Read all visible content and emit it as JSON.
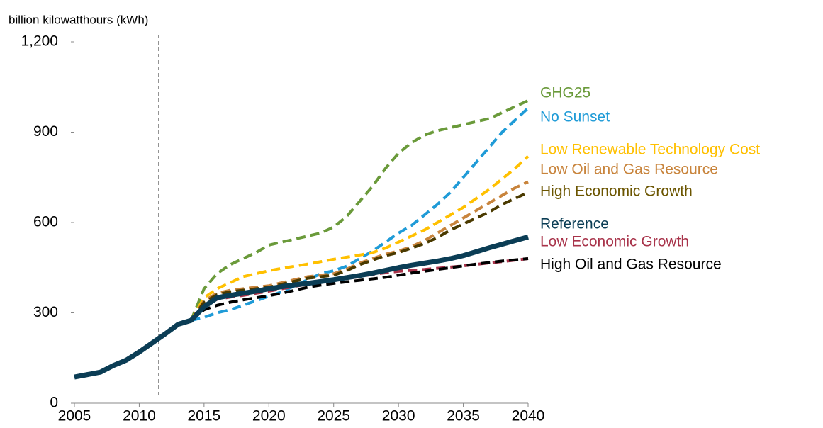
{
  "chart_data": {
    "type": "line",
    "y_label": "billion kilowatthours (kWh)",
    "x": [
      2005,
      2006,
      2007,
      2008,
      2009,
      2010,
      2011,
      2012,
      2013,
      2014,
      2015,
      2016,
      2017,
      2018,
      2019,
      2020,
      2021,
      2022,
      2023,
      2024,
      2025,
      2026,
      2027,
      2028,
      2029,
      2030,
      2031,
      2032,
      2033,
      2034,
      2035,
      2036,
      2037,
      2038,
      2039,
      2040
    ],
    "xlim": [
      2005,
      2040
    ],
    "xticks": [
      2005,
      2010,
      2015,
      2020,
      2025,
      2030,
      2035,
      2040
    ],
    "ylim": [
      0,
      1200
    ],
    "yticks": [
      0,
      300,
      600,
      900,
      {
        "value": 1200,
        "label": "1,200"
      }
    ],
    "divider_x": 2011.5,
    "series": [
      {
        "name": "GHG25",
        "color": "#6a9a3a",
        "dashed": true,
        "values": [
          null,
          null,
          null,
          null,
          null,
          null,
          null,
          null,
          null,
          275,
          380,
          430,
          460,
          480,
          500,
          525,
          535,
          545,
          555,
          565,
          585,
          620,
          670,
          720,
          780,
          830,
          865,
          890,
          905,
          915,
          925,
          935,
          945,
          965,
          985,
          1005
        ]
      },
      {
        "name": "No Sunset",
        "color": "#1f9bd7",
        "dashed": true,
        "values": [
          null,
          null,
          null,
          null,
          null,
          null,
          null,
          null,
          null,
          275,
          285,
          300,
          310,
          325,
          340,
          355,
          370,
          390,
          410,
          430,
          440,
          455,
          480,
          505,
          535,
          565,
          590,
          625,
          660,
          700,
          750,
          800,
          850,
          900,
          940,
          980
        ]
      },
      {
        "name": "Low Renewable Technology Cost",
        "color": "#ffc000",
        "dashed": true,
        "values": [
          null,
          null,
          null,
          null,
          null,
          null,
          null,
          null,
          null,
          275,
          350,
          380,
          400,
          420,
          430,
          440,
          448,
          455,
          462,
          470,
          478,
          485,
          492,
          500,
          515,
          535,
          555,
          575,
          600,
          625,
          650,
          680,
          710,
          745,
          780,
          820
        ]
      },
      {
        "name": "Low Oil and Gas Resource",
        "color": "#c8843c",
        "dashed": true,
        "values": [
          null,
          null,
          null,
          null,
          null,
          null,
          null,
          null,
          null,
          275,
          340,
          365,
          375,
          380,
          385,
          390,
          400,
          410,
          420,
          425,
          430,
          445,
          465,
          480,
          495,
          505,
          520,
          540,
          565,
          590,
          615,
          640,
          665,
          690,
          715,
          735
        ]
      },
      {
        "name": "High Economic Growth",
        "color": "#4a3a00",
        "dashed": true,
        "values": [
          null,
          null,
          null,
          null,
          null,
          null,
          null,
          null,
          null,
          275,
          335,
          360,
          370,
          375,
          380,
          385,
          395,
          405,
          415,
          420,
          425,
          440,
          460,
          475,
          490,
          500,
          515,
          530,
          550,
          575,
          595,
          615,
          635,
          660,
          680,
          700
        ]
      },
      {
        "name": "Low Economic Growth",
        "color": "#a8334a",
        "dashed": true,
        "values": [
          null,
          null,
          null,
          null,
          null,
          null,
          null,
          null,
          null,
          275,
          320,
          345,
          352,
          358,
          365,
          372,
          380,
          388,
          395,
          402,
          408,
          414,
          420,
          428,
          433,
          438,
          441,
          444,
          448,
          452,
          456,
          461,
          466,
          470,
          475,
          480
        ]
      },
      {
        "name": "High Oil and Gas Resource",
        "color": "#000000",
        "dashed": true,
        "values": [
          null,
          null,
          null,
          null,
          null,
          null,
          null,
          null,
          null,
          275,
          310,
          325,
          335,
          343,
          350,
          357,
          365,
          375,
          385,
          392,
          398,
          403,
          408,
          413,
          418,
          425,
          432,
          438,
          444,
          450,
          456,
          462,
          467,
          472,
          476,
          480
        ]
      },
      {
        "name": "Reference",
        "color": "#0b3d55",
        "dashed": false,
        "values": [
          87,
          95,
          103,
          125,
          143,
          170,
          200,
          230,
          262,
          275,
          320,
          350,
          358,
          365,
          372,
          380,
          387,
          393,
          398,
          404,
          410,
          417,
          424,
          432,
          441,
          450,
          458,
          465,
          472,
          480,
          490,
          503,
          516,
          528,
          540,
          552
        ]
      }
    ]
  }
}
